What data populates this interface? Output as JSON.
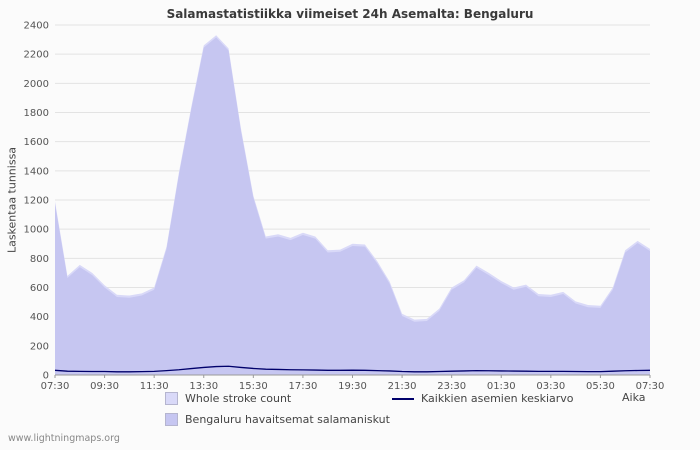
{
  "title": "Salamastatistiikka viimeiset 24h Asemalta: Bengaluru",
  "y_axis_label": "Laskentaa tunnissa",
  "x_axis_label": "Aika",
  "watermark": "www.lightningmaps.org",
  "legend": {
    "whole_label": "Whole stroke count",
    "avg_label": "Kaikkien asemien keskiarvo",
    "bengaluru_label": "Bengaluru havaitsemat salamaniskut"
  },
  "colors": {
    "whole_fill": "#d9d9f8",
    "bengaluru_fill": "#c6c6f1",
    "avg_line": "#00006b",
    "grid": "#e3e3e3",
    "axis": "#999999",
    "tick_text": "#555555"
  },
  "chart_data": {
    "type": "area",
    "title": "Salamastatistiikka viimeiset 24h Asemalta: Bengaluru",
    "xlabel": "Aika",
    "ylabel": "Laskentaa tunnissa",
    "ylim": [
      0,
      2400
    ],
    "y_tick_step": 200,
    "grid": "horizontal",
    "legend_position": "bottom",
    "x_interval_minutes": 30,
    "x_ticks": [
      "07:30",
      "09:30",
      "11:30",
      "13:30",
      "15:30",
      "17:30",
      "19:30",
      "21:30",
      "23:30",
      "01:30",
      "03:30",
      "05:30",
      "07:30"
    ],
    "tick_every": 4,
    "series": [
      {
        "name": "Whole stroke count",
        "render": "area",
        "color_key": "whole_fill",
        "values": [
          1190,
          680,
          755,
          700,
          615,
          550,
          545,
          560,
          600,
          880,
          1390,
          1840,
          2260,
          2330,
          2240,
          1690,
          1230,
          950,
          965,
          940,
          975,
          950,
          855,
          860,
          900,
          895,
          780,
          640,
          420,
          380,
          385,
          455,
          600,
          650,
          750,
          700,
          645,
          600,
          620,
          555,
          550,
          570,
          505,
          480,
          475,
          600,
          855,
          920,
          865
        ]
      },
      {
        "name": "Bengaluru havaitsemat salamaniskut",
        "render": "area",
        "color_key": "bengaluru_fill",
        "values": [
          1175,
          665,
          740,
          685,
          600,
          535,
          530,
          545,
          585,
          865,
          1375,
          1825,
          2245,
          2315,
          2225,
          1675,
          1215,
          935,
          950,
          925,
          960,
          935,
          840,
          845,
          885,
          880,
          765,
          625,
          405,
          365,
          370,
          440,
          585,
          635,
          735,
          685,
          630,
          585,
          605,
          540,
          535,
          555,
          490,
          465,
          460,
          585,
          840,
          905,
          850
        ]
      },
      {
        "name": "Kaikkien asemien keskiarvo",
        "render": "line",
        "color_key": "avg_line",
        "values": [
          32,
          26,
          25,
          24,
          24,
          22,
          22,
          23,
          25,
          30,
          36,
          44,
          52,
          58,
          60,
          52,
          45,
          40,
          38,
          36,
          35,
          34,
          32,
          32,
          33,
          32,
          30,
          28,
          24,
          22,
          22,
          24,
          26,
          28,
          30,
          29,
          28,
          27,
          26,
          25,
          25,
          25,
          24,
          23,
          23,
          26,
          29,
          31,
          32
        ]
      }
    ]
  }
}
